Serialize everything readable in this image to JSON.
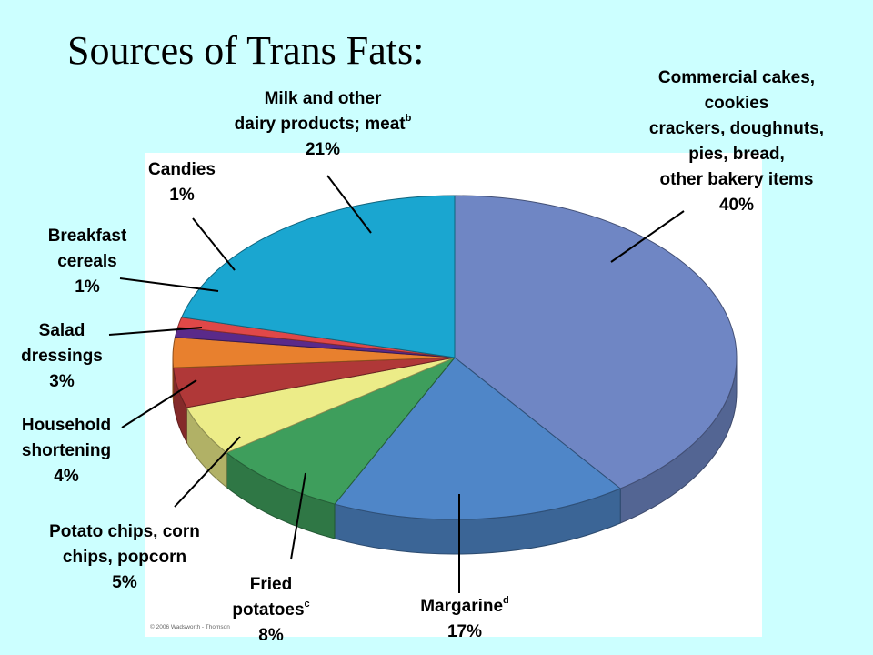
{
  "title": "Sources of Trans Fats:",
  "copyright": "© 2006 Wadsworth - Thomson",
  "chart_data": {
    "type": "pie",
    "title": "Sources of Trans Fats:",
    "slices": [
      {
        "lines": [
          "Commercial cakes,",
          "cookies",
          "crackers, doughnuts,",
          "pies, bread,",
          "other bakery items"
        ],
        "value": 40,
        "value_label": "40%",
        "color": "#6f86c4"
      },
      {
        "lines": [
          "Margarine"
        ],
        "sup": "d",
        "value": 17,
        "value_label": "17%",
        "color": "#4f86c8"
      },
      {
        "lines": [
          "Fried",
          "potatoes"
        ],
        "sup": "c",
        "value": 8,
        "value_label": "8%",
        "color": "#3e9e5c"
      },
      {
        "lines": [
          "Potato chips, corn",
          "chips, popcorn"
        ],
        "value": 5,
        "value_label": "5%",
        "color": "#ecec88"
      },
      {
        "lines": [
          "Household",
          "shortening"
        ],
        "value": 4,
        "value_label": "4%",
        "color": "#b03838"
      },
      {
        "lines": [
          "Salad",
          "dressings"
        ],
        "value": 3,
        "value_label": "3%",
        "color": "#e8802e"
      },
      {
        "lines": [
          "Breakfast",
          "cereals"
        ],
        "value": 1,
        "value_label": "1%",
        "color": "#5a2a8a"
      },
      {
        "lines": [
          "Candies"
        ],
        "value": 1,
        "value_label": "1%",
        "color": "#e04848"
      },
      {
        "lines": [
          "Milk and other",
          "dairy products; meat"
        ],
        "sup": "b",
        "value": 21,
        "value_label": "21%",
        "color": "#1aa6d0"
      }
    ]
  }
}
